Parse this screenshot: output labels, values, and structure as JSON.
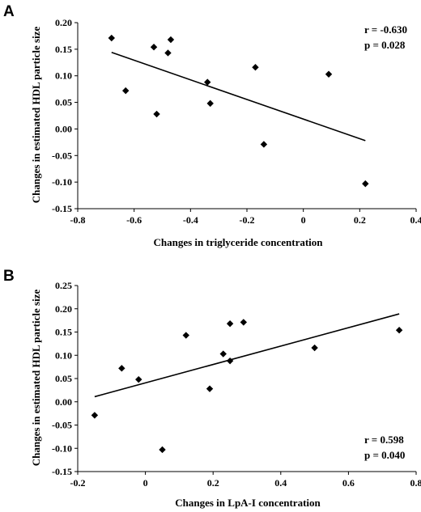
{
  "chart_data": [
    {
      "type": "scatter",
      "panel_label": "A",
      "xlabel": "Changes in triglyceride concentration",
      "ylabel": "Changes in estimated HDL particle size",
      "xlim": [
        -0.8,
        0.4
      ],
      "ylim": [
        -0.15,
        0.2
      ],
      "xticks": [
        -0.8,
        -0.6,
        -0.4,
        -0.2,
        0,
        0.2,
        0.4
      ],
      "xtick_labels": [
        "-0.8",
        "-0.6",
        "-0.4",
        "-0.2",
        "0",
        "0.2",
        "0.4"
      ],
      "yticks": [
        -0.15,
        -0.1,
        -0.05,
        0.0,
        0.05,
        0.1,
        0.15,
        0.2
      ],
      "ytick_labels": [
        "-0.15",
        "-0.10",
        "-0.05",
        "0.00",
        "0.05",
        "0.10",
        "0.15",
        "0.20"
      ],
      "grid": false,
      "points": [
        {
          "x": -0.68,
          "y": 0.171
        },
        {
          "x": -0.63,
          "y": 0.072
        },
        {
          "x": -0.53,
          "y": 0.154
        },
        {
          "x": -0.52,
          "y": 0.028
        },
        {
          "x": -0.48,
          "y": 0.143
        },
        {
          "x": -0.47,
          "y": 0.168
        },
        {
          "x": -0.34,
          "y": 0.088
        },
        {
          "x": -0.33,
          "y": 0.048
        },
        {
          "x": -0.17,
          "y": 0.116
        },
        {
          "x": -0.14,
          "y": -0.029
        },
        {
          "x": 0.09,
          "y": 0.103
        },
        {
          "x": 0.22,
          "y": -0.103
        }
      ],
      "fit_line": {
        "x": [
          -0.68,
          0.22
        ],
        "y": [
          0.144,
          -0.022
        ]
      },
      "stats": [
        "r = -0.630",
        "p = 0.028"
      ],
      "stats_position": "top-right"
    },
    {
      "type": "scatter",
      "panel_label": "B",
      "xlabel": "Changes in LpA-I concentration",
      "ylabel": "Changes in estimated HDL particle size",
      "xlim": [
        -0.2,
        0.8
      ],
      "ylim": [
        -0.15,
        0.25
      ],
      "xticks": [
        -0.2,
        0,
        0.2,
        0.4,
        0.6,
        0.8
      ],
      "xtick_labels": [
        "-0.2",
        "0",
        "0.2",
        "0.4",
        "0.6",
        "0.8"
      ],
      "yticks": [
        -0.15,
        -0.1,
        -0.05,
        0.0,
        0.05,
        0.1,
        0.15,
        0.2,
        0.25
      ],
      "ytick_labels": [
        "-0.15",
        "-0.10",
        "-0.05",
        "0.00",
        "0.05",
        "0.10",
        "0.15",
        "0.20",
        "0.25"
      ],
      "grid": false,
      "points": [
        {
          "x": -0.15,
          "y": -0.029
        },
        {
          "x": -0.07,
          "y": 0.072
        },
        {
          "x": -0.02,
          "y": 0.048
        },
        {
          "x": 0.05,
          "y": -0.103
        },
        {
          "x": 0.12,
          "y": 0.143
        },
        {
          "x": 0.19,
          "y": 0.028
        },
        {
          "x": 0.23,
          "y": 0.103
        },
        {
          "x": 0.25,
          "y": 0.168
        },
        {
          "x": 0.25,
          "y": 0.088
        },
        {
          "x": 0.29,
          "y": 0.171
        },
        {
          "x": 0.5,
          "y": 0.116
        },
        {
          "x": 0.75,
          "y": 0.154
        }
      ],
      "fit_line": {
        "x": [
          -0.15,
          0.75
        ],
        "y": [
          0.011,
          0.189
        ]
      },
      "stats": [
        "r = 0.598",
        "p = 0.040"
      ],
      "stats_position": "bottom-right"
    }
  ]
}
